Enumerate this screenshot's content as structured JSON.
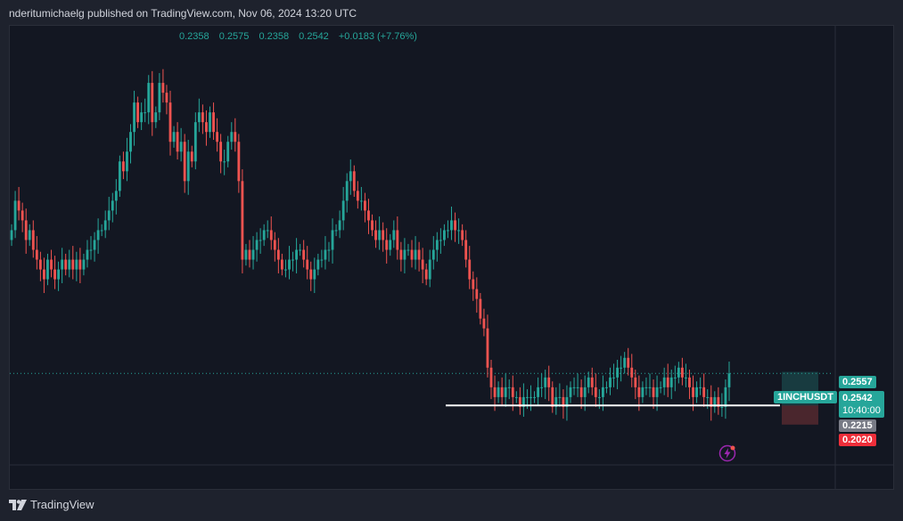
{
  "header": {
    "publisher": "nderitumichaelg published on TradingView.com, Nov 06, 2024 13:20 UTC"
  },
  "ohlc": {
    "open": "0.2358",
    "high": "0.2575",
    "low": "0.2358",
    "close": "0.2542",
    "change": "+0.0183 (+7.76%)"
  },
  "price_scale": {
    "tp_price": "0.2557",
    "symbol": "1INCHUSDT",
    "last_price": "0.2542",
    "countdown": "10:40:00",
    "entry_price": "0.2215",
    "stop_price": "0.2020"
  },
  "footer": {
    "brand": "TradingView"
  },
  "colors": {
    "up": "#26a69a",
    "down": "#ef5350",
    "background": "#131722",
    "support_line": "#ffffff"
  },
  "chart_data": {
    "type": "candlestick",
    "symbol": "1INCHUSDT",
    "ylim": [
      0.19,
      0.58
    ],
    "x_count": 200,
    "close": [
      0.4,
      0.43,
      0.42,
      0.41,
      0.39,
      0.4,
      0.38,
      0.37,
      0.36,
      0.35,
      0.37,
      0.36,
      0.35,
      0.36,
      0.37,
      0.36,
      0.37,
      0.36,
      0.37,
      0.36,
      0.37,
      0.38,
      0.38,
      0.39,
      0.4,
      0.4,
      0.41,
      0.42,
      0.43,
      0.44,
      0.47,
      0.46,
      0.48,
      0.5,
      0.53,
      0.51,
      0.52,
      0.52,
      0.55,
      0.51,
      0.52,
      0.55,
      0.54,
      0.53,
      0.49,
      0.5,
      0.48,
      0.49,
      0.45,
      0.48,
      0.47,
      0.51,
      0.52,
      0.51,
      0.5,
      0.52,
      0.5,
      0.49,
      0.47,
      0.47,
      0.49,
      0.5,
      0.49,
      0.45,
      0.37,
      0.38,
      0.37,
      0.38,
      0.39,
      0.39,
      0.4,
      0.4,
      0.39,
      0.38,
      0.37,
      0.36,
      0.36,
      0.37,
      0.37,
      0.38,
      0.38,
      0.37,
      0.36,
      0.35,
      0.36,
      0.37,
      0.37,
      0.38,
      0.38,
      0.4,
      0.4,
      0.41,
      0.43,
      0.45,
      0.46,
      0.44,
      0.43,
      0.43,
      0.42,
      0.41,
      0.4,
      0.39,
      0.4,
      0.39,
      0.38,
      0.39,
      0.4,
      0.38,
      0.37,
      0.38,
      0.38,
      0.37,
      0.38,
      0.37,
      0.36,
      0.35,
      0.37,
      0.38,
      0.39,
      0.39,
      0.4,
      0.4,
      0.41,
      0.4,
      0.4,
      0.39,
      0.37,
      0.35,
      0.34,
      0.33,
      0.31,
      0.3,
      0.26,
      0.24,
      0.23,
      0.24,
      0.23,
      0.24,
      0.24,
      0.23,
      0.23,
      0.22,
      0.23,
      0.23,
      0.23,
      0.23,
      0.24,
      0.24,
      0.25,
      0.24,
      0.22,
      0.23,
      0.23,
      0.22,
      0.23,
      0.24,
      0.24,
      0.24,
      0.23,
      0.24,
      0.25,
      0.24,
      0.23,
      0.23,
      0.24,
      0.24,
      0.25,
      0.25,
      0.26,
      0.26,
      0.27,
      0.26,
      0.25,
      0.24,
      0.23,
      0.24,
      0.24,
      0.24,
      0.23,
      0.24,
      0.24,
      0.25,
      0.24,
      0.25,
      0.25,
      0.26,
      0.25,
      0.25,
      0.24,
      0.23,
      0.24,
      0.24,
      0.23,
      0.23,
      0.22,
      0.23,
      0.22,
      0.22,
      0.24,
      0.2542
    ],
    "support_level": 0.2215,
    "position": {
      "target": 0.2557,
      "entry": 0.2215,
      "stop": 0.202
    }
  }
}
